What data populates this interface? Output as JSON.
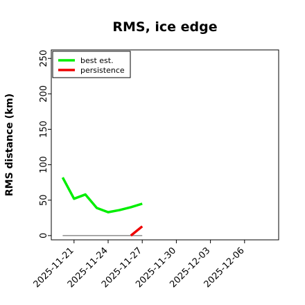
{
  "chart_data": {
    "type": "line",
    "title": "RMS, ice edge",
    "ylabel": "RMS distance (km)",
    "xlabel": "",
    "ylim": [
      -6,
      262
    ],
    "xlim": [
      "2025-11-19",
      "2025-12-09"
    ],
    "y_ticks": [
      0,
      50,
      100,
      150,
      200,
      250
    ],
    "x_ticks": [
      "2025-11-21",
      "2025-11-24",
      "2025-11-27",
      "2025-11-30",
      "2025-12-03",
      "2025-12-06"
    ],
    "grid": false,
    "legend": "top-left",
    "series": [
      {
        "name": "best est.",
        "color": "#00ee00",
        "x": [
          "2025-11-20",
          "2025-11-21",
          "2025-11-22",
          "2025-11-23",
          "2025-11-24",
          "2025-11-25",
          "2025-11-26",
          "2025-11-27"
        ],
        "values": [
          82,
          52,
          58,
          39,
          33,
          36,
          40,
          45
        ]
      },
      {
        "name": "persistence",
        "color": "#ee0000",
        "x": [
          "2025-11-26",
          "2025-11-27"
        ],
        "values": [
          0,
          13
        ]
      }
    ],
    "reference_line": {
      "color": "#777777",
      "x": [
        "2025-11-20",
        "2025-11-27"
      ],
      "values": [
        0,
        0
      ]
    }
  }
}
